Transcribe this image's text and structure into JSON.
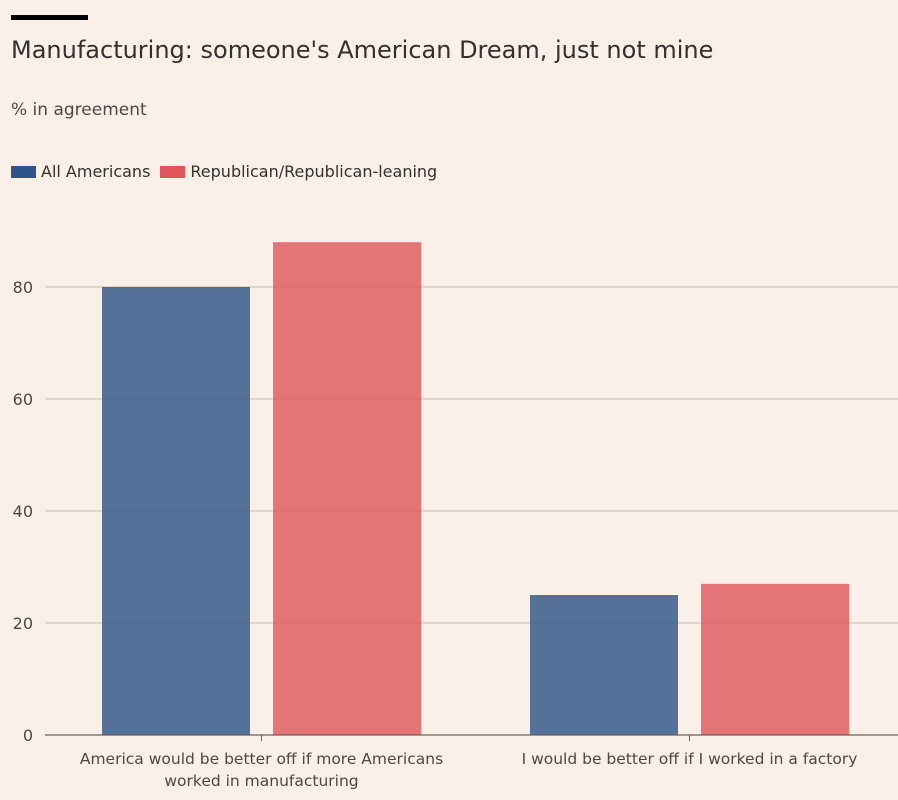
{
  "chart_data": {
    "type": "bar",
    "title": "Manufacturing: someone's American Dream, just not mine",
    "subtitle": "% in agreement",
    "categories": [
      [
        "America would be better off if more Americans",
        "worked in manufacturing"
      ],
      [
        "I would be better off if I worked in a factory"
      ]
    ],
    "series": [
      {
        "name": "All Americans",
        "color": "#2e5489",
        "values": [
          80,
          25
        ]
      },
      {
        "name": "Republican/Republican-leaning",
        "color": "#e0555a",
        "values": [
          88,
          27
        ]
      }
    ],
    "ylim": [
      0,
      90
    ],
    "yticks": [
      0,
      20,
      40,
      60,
      80
    ],
    "grid": true,
    "legend": "top-left"
  }
}
